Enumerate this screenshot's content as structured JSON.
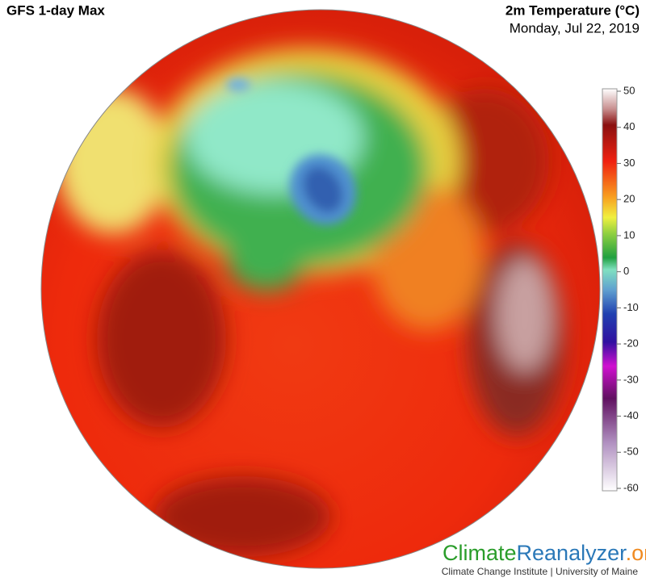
{
  "header": {
    "title": "GFS 1-day Max",
    "variable": "2m Temperature (°C)",
    "date": "Monday, Jul 22, 2019"
  },
  "colorbar": {
    "range": [
      -60,
      50
    ],
    "ticks": [
      50,
      40,
      30,
      20,
      10,
      0,
      -10,
      -20,
      -30,
      -40,
      -50,
      -60
    ]
  },
  "footer": {
    "logo": {
      "climate": "Climate",
      "reanalyzer": "Reanalyzer",
      "org": ".org"
    },
    "credit": "Climate Change Institute | University of Maine"
  }
}
